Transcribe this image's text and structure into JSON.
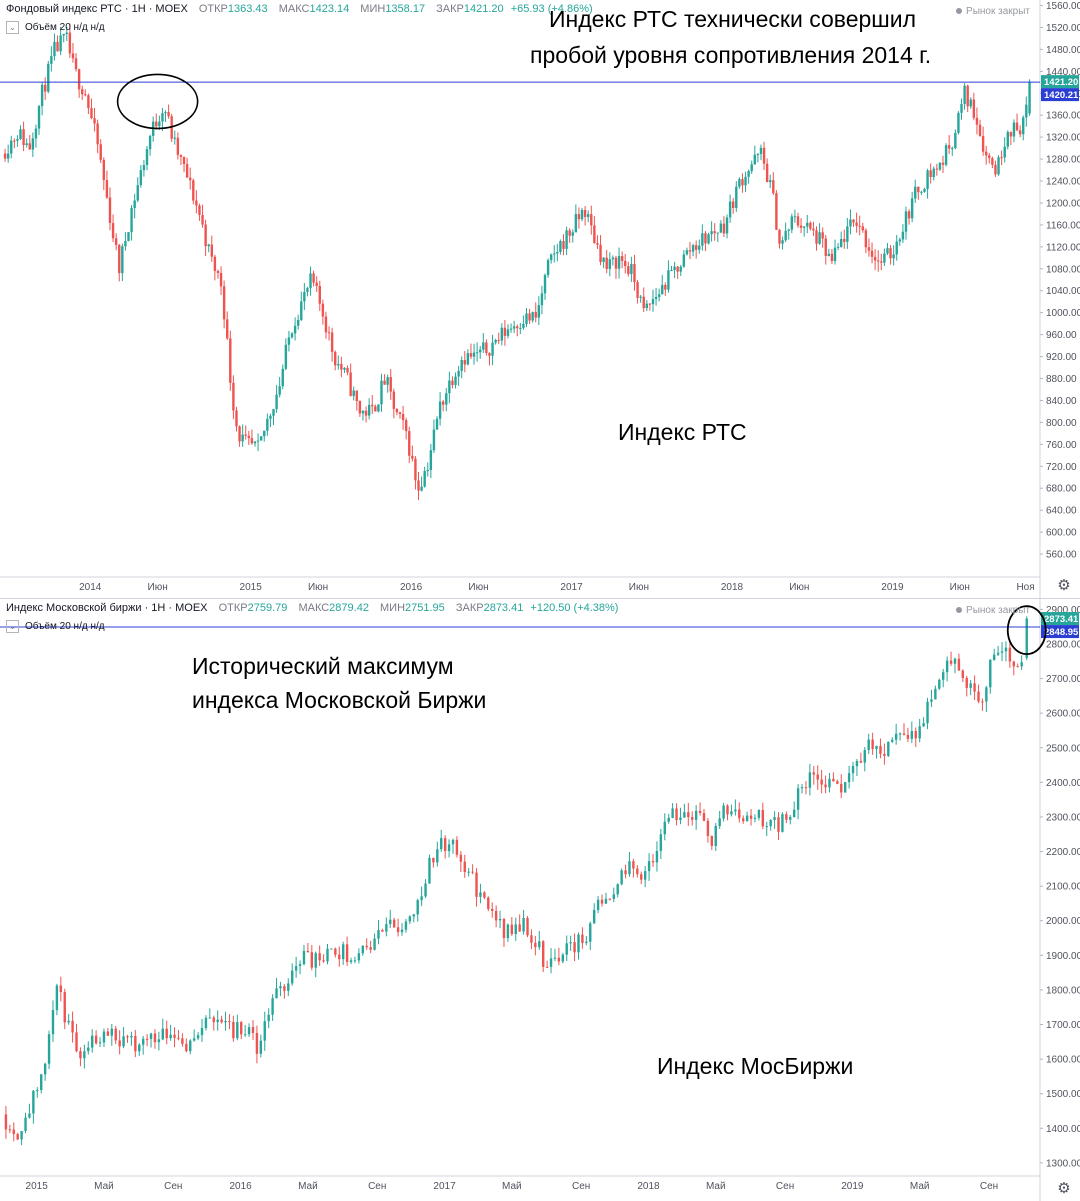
{
  "charts": [
    {
      "id": "rts",
      "legend": {
        "name": "Фондовый индекс РТС · 1Н · MOEX",
        "open_label": "ОТКР",
        "open": "1363.43",
        "high_label": "МАКС",
        "high": "1423.14",
        "low_label": "МИН",
        "low": "1358.17",
        "close_label": "ЗАКР",
        "close": "1421.20",
        "change": "+65.93 (+4.86%)"
      },
      "volume_label": "Объём 20  н/д н/д",
      "market_status": "Рынок закрыт",
      "annotations": {
        "headline_1": "Индекс РТС технически совершил",
        "headline_2": "пробой уровня сопротивления 2014 г.",
        "series_caption": "Индекс РТС"
      },
      "price_badges": [
        "1421.20",
        "1420.21"
      ],
      "colors": {
        "up": "#26a69a",
        "down": "#ef5350",
        "resistance_line": "#2c3fd4",
        "badge_up": "#26a69a",
        "badge_line": "#2c3fd4"
      }
    },
    {
      "id": "moex",
      "legend": {
        "name": "Индекс Московской биржи · 1Н · MOEX",
        "open_label": "ОТКР",
        "open": "2759.79",
        "high_label": "МАКС",
        "high": "2879.42",
        "low_label": "МИН",
        "low": "2751.95",
        "close_label": "ЗАКР",
        "close": "2873.41",
        "change": "+120.50 (+4.38%)"
      },
      "volume_label": "Объём 20  н/д н/д",
      "market_status": "Рынок закрыт",
      "annotations": {
        "headline_1": "Исторический максимум",
        "headline_2": "индекса Московской Биржи",
        "series_caption": "Индекс МосБиржи"
      },
      "price_badges": [
        "2873.41",
        "2848.95"
      ],
      "colors": {
        "up": "#26a69a",
        "down": "#ef5350",
        "resistance_line": "#2c3fd4",
        "badge_up": "#26a69a",
        "badge_line": "#2c3fd4"
      }
    }
  ],
  "chart_data": [
    {
      "type": "candlestick",
      "title": "Фондовый индекс РТС · 1Н · MOEX",
      "xlim": [
        2013.45,
        2019.92
      ],
      "ylim": [
        520,
        1570
      ],
      "y_ticks": [
        560,
        600,
        640,
        680,
        720,
        760,
        800,
        840,
        880,
        920,
        960,
        1000,
        1040,
        1080,
        1120,
        1160,
        1200,
        1240,
        1280,
        1320,
        1360,
        1400,
        1440,
        1480,
        1520,
        1560
      ],
      "x_ticks": [
        {
          "t": 2014.0,
          "label": "2014"
        },
        {
          "t": 2014.42,
          "label": "Июн"
        },
        {
          "t": 2015.0,
          "label": "2015"
        },
        {
          "t": 2015.42,
          "label": "Июн"
        },
        {
          "t": 2016.0,
          "label": "2016"
        },
        {
          "t": 2016.42,
          "label": "Июн"
        },
        {
          "t": 2017.0,
          "label": "2017"
        },
        {
          "t": 2017.42,
          "label": "Июн"
        },
        {
          "t": 2018.0,
          "label": "2018"
        },
        {
          "t": 2018.42,
          "label": "Июн"
        },
        {
          "t": 2019.0,
          "label": "2019"
        },
        {
          "t": 2019.42,
          "label": "Июн"
        },
        {
          "t": 2019.83,
          "label": "Ноя"
        }
      ],
      "resistance_level": 1420.21,
      "last_close": 1421.2,
      "anchors": [
        [
          2013.45,
          1290
        ],
        [
          2013.55,
          1330
        ],
        [
          2013.62,
          1300
        ],
        [
          2013.7,
          1400
        ],
        [
          2013.78,
          1480
        ],
        [
          2013.85,
          1500
        ],
        [
          2013.9,
          1440
        ],
        [
          2013.97,
          1400
        ],
        [
          2014.05,
          1300
        ],
        [
          2014.12,
          1180
        ],
        [
          2014.18,
          1080
        ],
        [
          2014.25,
          1180
        ],
        [
          2014.32,
          1260
        ],
        [
          2014.38,
          1330
        ],
        [
          2014.46,
          1380
        ],
        [
          2014.52,
          1310
        ],
        [
          2014.6,
          1250
        ],
        [
          2014.68,
          1180
        ],
        [
          2014.75,
          1100
        ],
        [
          2014.82,
          1050
        ],
        [
          2014.88,
          860
        ],
        [
          2014.92,
          780
        ],
        [
          2014.97,
          760
        ],
        [
          2015.05,
          750
        ],
        [
          2015.1,
          800
        ],
        [
          2015.18,
          870
        ],
        [
          2015.25,
          970
        ],
        [
          2015.32,
          1020
        ],
        [
          2015.38,
          1060
        ],
        [
          2015.45,
          1000
        ],
        [
          2015.52,
          920
        ],
        [
          2015.6,
          880
        ],
        [
          2015.68,
          820
        ],
        [
          2015.76,
          820
        ],
        [
          2015.84,
          880
        ],
        [
          2015.9,
          820
        ],
        [
          2015.97,
          780
        ],
        [
          2016.04,
          680
        ],
        [
          2016.1,
          720
        ],
        [
          2016.18,
          830
        ],
        [
          2016.25,
          880
        ],
        [
          2016.32,
          920
        ],
        [
          2016.4,
          920
        ],
        [
          2016.5,
          940
        ],
        [
          2016.6,
          970
        ],
        [
          2016.7,
          990
        ],
        [
          2016.78,
          990
        ],
        [
          2016.85,
          1080
        ],
        [
          2016.92,
          1120
        ],
        [
          2017.0,
          1150
        ],
        [
          2017.08,
          1190
        ],
        [
          2017.15,
          1130
        ],
        [
          2017.22,
          1080
        ],
        [
          2017.3,
          1100
        ],
        [
          2017.38,
          1070
        ],
        [
          2017.45,
          1000
        ],
        [
          2017.55,
          1040
        ],
        [
          2017.65,
          1080
        ],
        [
          2017.75,
          1120
        ],
        [
          2017.85,
          1140
        ],
        [
          2017.95,
          1160
        ],
        [
          2018.05,
          1240
        ],
        [
          2018.12,
          1270
        ],
        [
          2018.18,
          1290
        ],
        [
          2018.25,
          1220
        ],
        [
          2018.3,
          1120
        ],
        [
          2018.38,
          1170
        ],
        [
          2018.45,
          1160
        ],
        [
          2018.55,
          1130
        ],
        [
          2018.62,
          1090
        ],
        [
          2018.7,
          1140
        ],
        [
          2018.78,
          1170
        ],
        [
          2018.85,
          1120
        ],
        [
          2018.92,
          1090
        ],
        [
          2019.0,
          1110
        ],
        [
          2019.08,
          1170
        ],
        [
          2019.15,
          1220
        ],
        [
          2019.22,
          1250
        ],
        [
          2019.3,
          1270
        ],
        [
          2019.38,
          1320
        ],
        [
          2019.45,
          1400
        ],
        [
          2019.52,
          1360
        ],
        [
          2019.58,
          1290
        ],
        [
          2019.65,
          1260
        ],
        [
          2019.72,
          1340
        ],
        [
          2019.78,
          1330
        ],
        [
          2019.83,
          1363
        ],
        [
          2019.855,
          1421
        ]
      ]
    },
    {
      "type": "candlestick",
      "title": "Индекс Московской биржи · 1Н · MOEX",
      "xlim": [
        2014.83,
        2019.92
      ],
      "ylim": [
        1265,
        2930
      ],
      "y_ticks": [
        1300,
        1400,
        1500,
        1600,
        1700,
        1800,
        1900,
        2000,
        2100,
        2200,
        2300,
        2400,
        2500,
        2600,
        2700,
        2800,
        2900
      ],
      "x_ticks": [
        {
          "t": 2015.0,
          "label": "2015"
        },
        {
          "t": 2015.33,
          "label": "Май"
        },
        {
          "t": 2015.67,
          "label": "Сен"
        },
        {
          "t": 2016.0,
          "label": "2016"
        },
        {
          "t": 2016.33,
          "label": "Май"
        },
        {
          "t": 2016.67,
          "label": "Сен"
        },
        {
          "t": 2017.0,
          "label": "2017"
        },
        {
          "t": 2017.33,
          "label": "Май"
        },
        {
          "t": 2017.67,
          "label": "Сен"
        },
        {
          "t": 2018.0,
          "label": "2018"
        },
        {
          "t": 2018.33,
          "label": "Май"
        },
        {
          "t": 2018.67,
          "label": "Сен"
        },
        {
          "t": 2019.0,
          "label": "2019"
        },
        {
          "t": 2019.33,
          "label": "Май"
        },
        {
          "t": 2019.67,
          "label": "Сен"
        }
      ],
      "resistance_level": 2848.95,
      "last_close": 2873.41,
      "anchors": [
        [
          2014.83,
          1440
        ],
        [
          2014.9,
          1380
        ],
        [
          2014.97,
          1470
        ],
        [
          2015.03,
          1540
        ],
        [
          2015.07,
          1720
        ],
        [
          2015.1,
          1810
        ],
        [
          2015.15,
          1700
        ],
        [
          2015.2,
          1620
        ],
        [
          2015.28,
          1660
        ],
        [
          2015.35,
          1690
        ],
        [
          2015.45,
          1640
        ],
        [
          2015.55,
          1660
        ],
        [
          2015.65,
          1690
        ],
        [
          2015.75,
          1640
        ],
        [
          2015.82,
          1700
        ],
        [
          2015.9,
          1730
        ],
        [
          2015.97,
          1680
        ],
        [
          2016.03,
          1700
        ],
        [
          2016.08,
          1620
        ],
        [
          2016.15,
          1760
        ],
        [
          2016.22,
          1820
        ],
        [
          2016.3,
          1900
        ],
        [
          2016.38,
          1880
        ],
        [
          2016.48,
          1910
        ],
        [
          2016.58,
          1900
        ],
        [
          2016.65,
          1940
        ],
        [
          2016.72,
          1990
        ],
        [
          2016.8,
          1980
        ],
        [
          2016.88,
          2080
        ],
        [
          2016.95,
          2200
        ],
        [
          2017.02,
          2230
        ],
        [
          2017.08,
          2180
        ],
        [
          2017.15,
          2100
        ],
        [
          2017.22,
          2030
        ],
        [
          2017.3,
          1960
        ],
        [
          2017.38,
          1990
        ],
        [
          2017.45,
          1940
        ],
        [
          2017.5,
          1870
        ],
        [
          2017.55,
          1900
        ],
        [
          2017.62,
          1930
        ],
        [
          2017.68,
          1940
        ],
        [
          2017.75,
          2050
        ],
        [
          2017.82,
          2090
        ],
        [
          2017.9,
          2150
        ],
        [
          2017.97,
          2140
        ],
        [
          2018.05,
          2220
        ],
        [
          2018.12,
          2320
        ],
        [
          2018.18,
          2310
        ],
        [
          2018.25,
          2290
        ],
        [
          2018.3,
          2230
        ],
        [
          2018.38,
          2320
        ],
        [
          2018.45,
          2310
        ],
        [
          2018.52,
          2320
        ],
        [
          2018.6,
          2270
        ],
        [
          2018.68,
          2290
        ],
        [
          2018.75,
          2380
        ],
        [
          2018.82,
          2420
        ],
        [
          2018.88,
          2400
        ],
        [
          2018.95,
          2380
        ],
        [
          2019.02,
          2460
        ],
        [
          2019.1,
          2510
        ],
        [
          2019.17,
          2500
        ],
        [
          2019.25,
          2540
        ],
        [
          2019.33,
          2540
        ],
        [
          2019.4,
          2680
        ],
        [
          2019.47,
          2780
        ],
        [
          2019.52,
          2720
        ],
        [
          2019.58,
          2660
        ],
        [
          2019.63,
          2640
        ],
        [
          2019.68,
          2740
        ],
        [
          2019.73,
          2800
        ],
        [
          2019.78,
          2720
        ],
        [
          2019.83,
          2760
        ],
        [
          2019.855,
          2873
        ]
      ]
    }
  ]
}
